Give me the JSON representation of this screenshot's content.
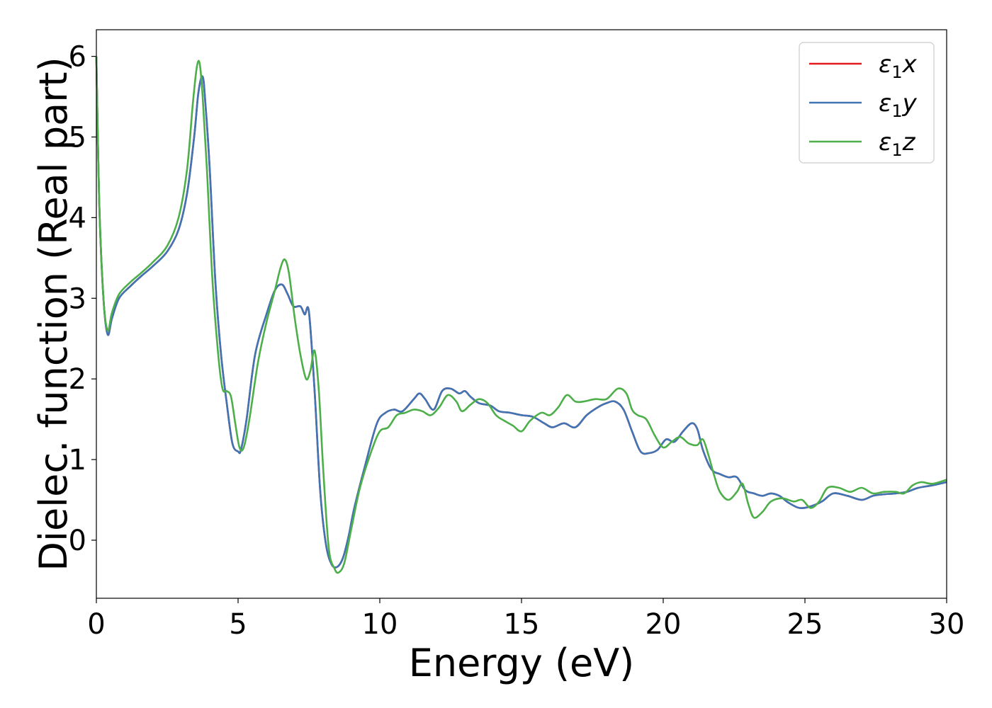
{
  "chart_data": {
    "type": "line",
    "title": "",
    "xlabel": "Energy (eV)",
    "ylabel": "Dielec. function (Real part)",
    "xlim": [
      0,
      30
    ],
    "ylim": [
      -0.72,
      6.33
    ],
    "xticks": [
      0,
      5,
      10,
      15,
      20,
      25,
      30
    ],
    "yticks": [
      0,
      1,
      2,
      3,
      4,
      5,
      6
    ],
    "grid": false,
    "legend_position": "top-right",
    "series": [
      {
        "name": "ε1x",
        "label_main": "ε",
        "label_sub": "1",
        "label_tail": "x",
        "color": "#e41a1c",
        "x": [
          0.0,
          0.1,
          0.25,
          0.4,
          0.55,
          0.8,
          1.2,
          1.6,
          2.0,
          2.5,
          2.9,
          3.2,
          3.45,
          3.6,
          3.75,
          3.85,
          4.0,
          4.2,
          4.4,
          4.6,
          4.8,
          5.0,
          5.1,
          5.3,
          5.6,
          6.0,
          6.3,
          6.55,
          6.75,
          6.95,
          7.2,
          7.35,
          7.5,
          7.7,
          7.9,
          8.1,
          8.3,
          8.5,
          8.7,
          8.9,
          9.1,
          9.5,
          9.9,
          10.2,
          10.5,
          10.8,
          11.2,
          11.4,
          11.6,
          11.9,
          12.2,
          12.5,
          12.8,
          13.0,
          13.2,
          13.5,
          13.9,
          14.2,
          14.6,
          15.0,
          15.4,
          15.8,
          16.1,
          16.5,
          16.9,
          17.3,
          17.7,
          18.0,
          18.3,
          18.6,
          18.9,
          19.2,
          19.5,
          19.8,
          20.1,
          20.4,
          20.7,
          21.0,
          21.2,
          21.4,
          21.7,
          22.0,
          22.3,
          22.6,
          22.9,
          23.2,
          23.5,
          23.8,
          24.1,
          24.4,
          24.8,
          25.2,
          25.6,
          26.0,
          26.5,
          27.0,
          27.4,
          27.8,
          28.2,
          28.6,
          29.0,
          29.5,
          30.0
        ],
        "y": [
          6.0,
          4.2,
          3.0,
          2.55,
          2.75,
          3.0,
          3.15,
          3.28,
          3.4,
          3.58,
          3.85,
          4.3,
          5.0,
          5.55,
          5.75,
          5.4,
          4.6,
          3.2,
          2.3,
          1.7,
          1.2,
          1.1,
          1.12,
          1.5,
          2.3,
          2.8,
          3.1,
          3.17,
          3.05,
          2.9,
          2.9,
          2.8,
          2.83,
          1.85,
          0.6,
          -0.05,
          -0.3,
          -0.33,
          -0.22,
          0.05,
          0.4,
          0.95,
          1.45,
          1.58,
          1.62,
          1.6,
          1.75,
          1.82,
          1.75,
          1.62,
          1.85,
          1.88,
          1.82,
          1.85,
          1.78,
          1.7,
          1.67,
          1.6,
          1.58,
          1.55,
          1.53,
          1.45,
          1.4,
          1.45,
          1.4,
          1.55,
          1.65,
          1.7,
          1.72,
          1.62,
          1.35,
          1.1,
          1.08,
          1.12,
          1.25,
          1.22,
          1.35,
          1.45,
          1.38,
          1.12,
          0.88,
          0.82,
          0.78,
          0.78,
          0.62,
          0.58,
          0.55,
          0.58,
          0.55,
          0.47,
          0.4,
          0.42,
          0.48,
          0.58,
          0.55,
          0.5,
          0.55,
          0.57,
          0.58,
          0.6,
          0.65,
          0.68,
          0.72
        ]
      },
      {
        "name": "ε1y",
        "label_main": "ε",
        "label_sub": "1",
        "label_tail": "y",
        "color": "#3f75b5",
        "x": [
          0.0,
          0.1,
          0.25,
          0.4,
          0.55,
          0.8,
          1.2,
          1.6,
          2.0,
          2.5,
          2.9,
          3.2,
          3.45,
          3.6,
          3.75,
          3.85,
          4.0,
          4.2,
          4.4,
          4.6,
          4.8,
          5.0,
          5.1,
          5.3,
          5.6,
          6.0,
          6.3,
          6.55,
          6.75,
          6.95,
          7.2,
          7.35,
          7.5,
          7.7,
          7.9,
          8.1,
          8.3,
          8.5,
          8.7,
          8.9,
          9.1,
          9.5,
          9.9,
          10.2,
          10.5,
          10.8,
          11.2,
          11.4,
          11.6,
          11.9,
          12.2,
          12.5,
          12.8,
          13.0,
          13.2,
          13.5,
          13.9,
          14.2,
          14.6,
          15.0,
          15.4,
          15.8,
          16.1,
          16.5,
          16.9,
          17.3,
          17.7,
          18.0,
          18.3,
          18.6,
          18.9,
          19.2,
          19.5,
          19.8,
          20.1,
          20.4,
          20.7,
          21.0,
          21.2,
          21.4,
          21.7,
          22.0,
          22.3,
          22.6,
          22.9,
          23.2,
          23.5,
          23.8,
          24.1,
          24.4,
          24.8,
          25.2,
          25.6,
          26.0,
          26.5,
          27.0,
          27.4,
          27.8,
          28.2,
          28.6,
          29.0,
          29.5,
          30.0
        ],
        "y": [
          6.0,
          4.2,
          3.0,
          2.55,
          2.75,
          3.0,
          3.15,
          3.28,
          3.4,
          3.58,
          3.85,
          4.3,
          5.0,
          5.55,
          5.75,
          5.4,
          4.6,
          3.2,
          2.3,
          1.7,
          1.2,
          1.1,
          1.12,
          1.5,
          2.3,
          2.8,
          3.1,
          3.17,
          3.05,
          2.9,
          2.9,
          2.8,
          2.83,
          1.85,
          0.6,
          -0.05,
          -0.3,
          -0.33,
          -0.22,
          0.05,
          0.4,
          0.95,
          1.45,
          1.58,
          1.62,
          1.6,
          1.75,
          1.82,
          1.75,
          1.62,
          1.85,
          1.88,
          1.82,
          1.85,
          1.78,
          1.7,
          1.67,
          1.6,
          1.58,
          1.55,
          1.53,
          1.45,
          1.4,
          1.45,
          1.4,
          1.55,
          1.65,
          1.7,
          1.72,
          1.62,
          1.35,
          1.1,
          1.08,
          1.12,
          1.25,
          1.22,
          1.35,
          1.45,
          1.38,
          1.12,
          0.88,
          0.82,
          0.78,
          0.78,
          0.62,
          0.58,
          0.55,
          0.58,
          0.55,
          0.47,
          0.4,
          0.42,
          0.48,
          0.58,
          0.55,
          0.5,
          0.55,
          0.57,
          0.58,
          0.6,
          0.65,
          0.68,
          0.72
        ]
      },
      {
        "name": "ε1z",
        "label_main": "ε",
        "label_sub": "1",
        "label_tail": "z",
        "color": "#4daf4a",
        "x": [
          0.0,
          0.1,
          0.25,
          0.4,
          0.55,
          0.8,
          1.2,
          1.6,
          2.0,
          2.5,
          2.9,
          3.2,
          3.4,
          3.55,
          3.65,
          3.75,
          3.9,
          4.1,
          4.3,
          4.45,
          4.6,
          4.75,
          4.9,
          5.05,
          5.2,
          5.4,
          5.7,
          6.0,
          6.3,
          6.5,
          6.65,
          6.8,
          7.0,
          7.2,
          7.4,
          7.55,
          7.7,
          7.85,
          8.0,
          8.2,
          8.4,
          8.55,
          8.75,
          9.0,
          9.3,
          9.7,
          10.0,
          10.3,
          10.6,
          10.9,
          11.2,
          11.5,
          11.8,
          12.1,
          12.4,
          12.7,
          12.9,
          13.2,
          13.5,
          13.8,
          14.1,
          14.4,
          14.7,
          15.0,
          15.3,
          15.7,
          16.0,
          16.3,
          16.6,
          16.9,
          17.2,
          17.6,
          18.0,
          18.4,
          18.7,
          18.9,
          19.1,
          19.4,
          19.7,
          20.0,
          20.3,
          20.6,
          20.9,
          21.2,
          21.4,
          21.6,
          21.8,
          22.0,
          22.3,
          22.6,
          22.8,
          23.0,
          23.2,
          23.5,
          23.8,
          24.2,
          24.6,
          24.9,
          25.2,
          25.5,
          25.8,
          26.2,
          26.6,
          27.0,
          27.4,
          27.8,
          28.2,
          28.5,
          28.8,
          29.1,
          29.5,
          30.0
        ],
        "y": [
          6.0,
          4.2,
          3.0,
          2.6,
          2.82,
          3.05,
          3.2,
          3.32,
          3.45,
          3.65,
          4.0,
          4.6,
          5.4,
          5.88,
          5.9,
          5.5,
          4.6,
          3.2,
          2.3,
          1.88,
          1.85,
          1.78,
          1.45,
          1.15,
          1.15,
          1.5,
          2.2,
          2.7,
          3.1,
          3.38,
          3.48,
          3.3,
          2.75,
          2.3,
          2.0,
          2.1,
          2.35,
          1.85,
          0.9,
          -0.1,
          -0.35,
          -0.4,
          -0.28,
          0.15,
          0.65,
          1.1,
          1.35,
          1.4,
          1.55,
          1.58,
          1.62,
          1.6,
          1.55,
          1.65,
          1.8,
          1.72,
          1.6,
          1.68,
          1.75,
          1.7,
          1.55,
          1.48,
          1.42,
          1.35,
          1.48,
          1.58,
          1.55,
          1.65,
          1.8,
          1.72,
          1.72,
          1.75,
          1.75,
          1.88,
          1.82,
          1.62,
          1.55,
          1.5,
          1.3,
          1.15,
          1.22,
          1.28,
          1.2,
          1.18,
          1.25,
          1.05,
          0.8,
          0.6,
          0.5,
          0.6,
          0.7,
          0.45,
          0.28,
          0.35,
          0.48,
          0.52,
          0.48,
          0.5,
          0.4,
          0.48,
          0.65,
          0.65,
          0.6,
          0.65,
          0.58,
          0.6,
          0.6,
          0.58,
          0.68,
          0.72,
          0.7,
          0.75
        ]
      }
    ]
  }
}
